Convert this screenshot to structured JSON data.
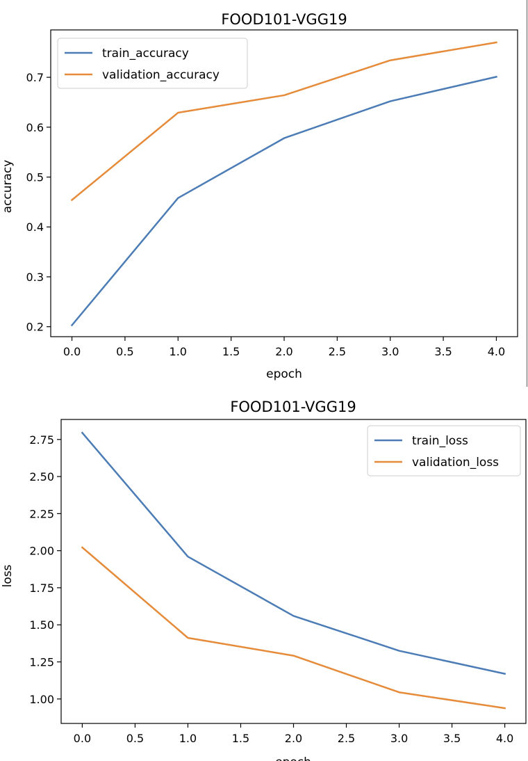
{
  "colors": {
    "train": "#4c7cb5",
    "validation": "#e58b3a",
    "axes": "#000000",
    "background": "#ffffff"
  },
  "chart_data": [
    {
      "type": "line",
      "title": "FOOD101-VGG19",
      "xlabel": "epoch",
      "ylabel": "accuracy",
      "x": [
        0,
        1,
        2,
        3,
        4
      ],
      "xlim": [
        -0.2,
        4.2
      ],
      "ylim": [
        0.18,
        0.795
      ],
      "xticks": [
        0,
        0.5,
        1,
        1.5,
        2,
        2.5,
        3,
        3.5,
        4
      ],
      "xtick_labels": [
        "0.0",
        "0.5",
        "1.0",
        "1.5",
        "2.0",
        "2.5",
        "3.0",
        "3.5",
        "4.0"
      ],
      "yticks": [
        0.2,
        0.3,
        0.4,
        0.5,
        0.6,
        0.7
      ],
      "ytick_labels": [
        "0.2",
        "0.3",
        "0.4",
        "0.5",
        "0.6",
        "0.7"
      ],
      "grid": false,
      "legend_position": "upper-left",
      "series": [
        {
          "name": "train_accuracy",
          "color": "#4c7cb5",
          "values": [
            0.203,
            0.458,
            0.578,
            0.652,
            0.701
          ]
        },
        {
          "name": "validation_accuracy",
          "color": "#e58b3a",
          "values": [
            0.454,
            0.629,
            0.664,
            0.734,
            0.77
          ]
        }
      ]
    },
    {
      "type": "line",
      "title": "FOOD101-VGG19",
      "xlabel": "epoch",
      "ylabel": "loss",
      "x": [
        0,
        1,
        2,
        3,
        4
      ],
      "xlim": [
        -0.2,
        4.2
      ],
      "ylim": [
        0.835,
        2.885
      ],
      "xticks": [
        0,
        0.5,
        1,
        1.5,
        2,
        2.5,
        3,
        3.5,
        4
      ],
      "xtick_labels": [
        "0.0",
        "0.5",
        "1.0",
        "1.5",
        "2.0",
        "2.5",
        "3.0",
        "3.5",
        "4.0"
      ],
      "yticks": [
        1.0,
        1.25,
        1.5,
        1.75,
        2.0,
        2.25,
        2.5,
        2.75
      ],
      "ytick_labels": [
        "1.00",
        "1.25",
        "1.50",
        "1.75",
        "2.00",
        "2.25",
        "2.50",
        "2.75"
      ],
      "grid": false,
      "legend_position": "upper-right",
      "series": [
        {
          "name": "train_loss",
          "color": "#4c7cb5",
          "values": [
            2.795,
            1.96,
            1.56,
            1.325,
            1.17
          ]
        },
        {
          "name": "validation_loss",
          "color": "#e58b3a",
          "values": [
            2.022,
            1.412,
            1.292,
            1.045,
            0.938
          ]
        }
      ]
    }
  ]
}
